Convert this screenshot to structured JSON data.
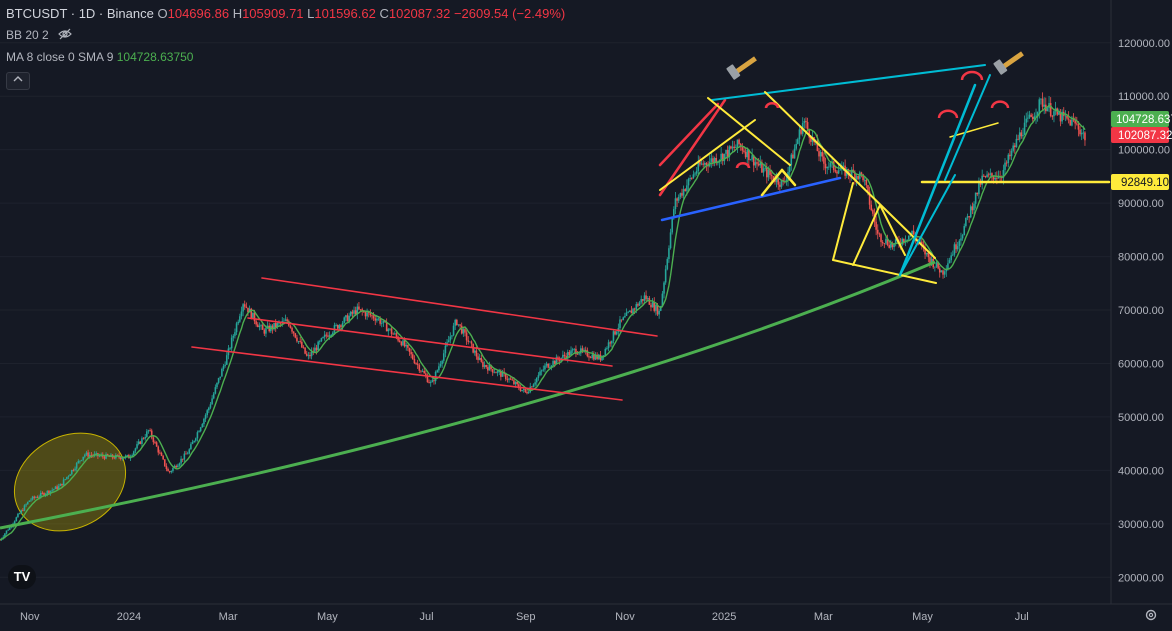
{
  "header": {
    "symbol": "BTCUSDT · 1D · Binance",
    "open_label": "O",
    "open": "104696.86",
    "high_label": "H",
    "high": "105909.71",
    "low_label": "L",
    "low": "101596.62",
    "close_label": "C",
    "close": "102087.32",
    "change": "−2609.54 (−2.49%)"
  },
  "indicators": {
    "bb": "BB 20 2",
    "ma_label": "MA 8 close 0 SMA 9",
    "ma_value": "104728.63750",
    "bb_icon": "eye-off-icon"
  },
  "price_tags": {
    "ma": "104728.637",
    "last": "102087.32",
    "level": "92849.10"
  },
  "logo_text": "TV",
  "settings_icon": "gear-icon",
  "colors": {
    "background": "#151924",
    "up": "#26a69a",
    "down": "#ef5350",
    "ma": "#4caf50",
    "yellow": "#ffeb3b",
    "red_lines": "#f23645",
    "blue_line": "#2962ff",
    "cyan_line": "#00bcd4",
    "green_curve": "#4caf50",
    "ellipse": "#c8b400"
  },
  "chart_data": {
    "type": "candlestick",
    "symbol": "BTCUSDT",
    "timeframe": "1D",
    "exchange": "Binance",
    "y_axis": {
      "ticks": [
        20000,
        30000,
        40000,
        50000,
        60000,
        70000,
        80000,
        90000,
        100000,
        110000,
        120000
      ],
      "tick_labels": [
        "20000.00",
        "30000.00",
        "40000.00",
        "50000.00",
        "60000.00",
        "70000.00",
        "80000.00",
        "90000.00",
        "100000.00",
        "110000.00",
        "120000.00"
      ],
      "range": [
        15000,
        128000
      ]
    },
    "x_axis": {
      "tick_labels": [
        "Nov",
        "2024",
        "Mar",
        "May",
        "Jul",
        "Sep",
        "Nov",
        "2025",
        "Mar",
        "May",
        "Jul"
      ],
      "tick_months": [
        1,
        3,
        5,
        7,
        9,
        11,
        13,
        15,
        17,
        19,
        21
      ],
      "range_months": [
        0.4,
        22.8
      ]
    },
    "price_path": [
      {
        "m": 0.4,
        "p": 27000
      },
      {
        "m": 1.0,
        "p": 34500
      },
      {
        "m": 1.6,
        "p": 37000
      },
      {
        "m": 2.1,
        "p": 43000
      },
      {
        "m": 2.6,
        "p": 42500
      },
      {
        "m": 3.0,
        "p": 42500
      },
      {
        "m": 3.4,
        "p": 47500
      },
      {
        "m": 3.8,
        "p": 39500
      },
      {
        "m": 4.2,
        "p": 43500
      },
      {
        "m": 4.6,
        "p": 51500
      },
      {
        "m": 5.0,
        "p": 62000
      },
      {
        "m": 5.3,
        "p": 71500
      },
      {
        "m": 5.7,
        "p": 66000
      },
      {
        "m": 6.2,
        "p": 68000
      },
      {
        "m": 6.6,
        "p": 61000
      },
      {
        "m": 7.0,
        "p": 65500
      },
      {
        "m": 7.6,
        "p": 70000
      },
      {
        "m": 8.0,
        "p": 68500
      },
      {
        "m": 8.5,
        "p": 64000
      },
      {
        "m": 9.1,
        "p": 56000
      },
      {
        "m": 9.6,
        "p": 68000
      },
      {
        "m": 10.1,
        "p": 60000
      },
      {
        "m": 10.6,
        "p": 57500
      },
      {
        "m": 11.0,
        "p": 54500
      },
      {
        "m": 11.4,
        "p": 59500
      },
      {
        "m": 12.0,
        "p": 62500
      },
      {
        "m": 12.5,
        "p": 61000
      },
      {
        "m": 12.9,
        "p": 67500
      },
      {
        "m": 13.4,
        "p": 72500
      },
      {
        "m": 13.7,
        "p": 69500
      },
      {
        "m": 14.0,
        "p": 90000
      },
      {
        "m": 14.5,
        "p": 97000
      },
      {
        "m": 15.0,
        "p": 99000
      },
      {
        "m": 15.3,
        "p": 101000
      },
      {
        "m": 15.8,
        "p": 96000
      },
      {
        "m": 16.2,
        "p": 93500
      },
      {
        "m": 16.6,
        "p": 105500
      },
      {
        "m": 17.0,
        "p": 97500
      },
      {
        "m": 17.4,
        "p": 96000
      },
      {
        "m": 17.8,
        "p": 95000
      },
      {
        "m": 18.1,
        "p": 84000
      },
      {
        "m": 18.4,
        "p": 82000
      },
      {
        "m": 18.8,
        "p": 84500
      },
      {
        "m": 19.1,
        "p": 80000
      },
      {
        "m": 19.4,
        "p": 77000
      },
      {
        "m": 19.8,
        "p": 84500
      },
      {
        "m": 20.2,
        "p": 94500
      },
      {
        "m": 20.6,
        "p": 95500
      },
      {
        "m": 21.0,
        "p": 103500
      },
      {
        "m": 21.4,
        "p": 109000
      },
      {
        "m": 21.7,
        "p": 106500
      },
      {
        "m": 22.1,
        "p": 104700
      },
      {
        "m": 22.3,
        "p": 102087
      }
    ],
    "ohlc_last": {
      "open": 104696.86,
      "high": 105909.71,
      "low": 101596.62,
      "close": 102087.32,
      "change": -2609.54,
      "change_pct": -2.49
    },
    "moving_average": {
      "name": "MA 8 close 0 SMA 9",
      "value": 104728.6375
    },
    "horizontal_level": 92849.1,
    "grid": false
  }
}
